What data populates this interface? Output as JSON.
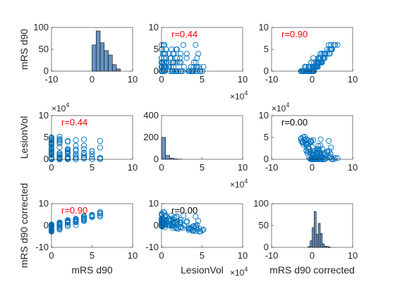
{
  "chart_data": [
    {
      "id": "p11",
      "type": "histogram",
      "ylim": [
        0,
        100
      ],
      "xlim": [
        -10,
        10
      ],
      "yticks": [
        "0",
        "50",
        "100"
      ],
      "xticks": [
        "-10",
        "0",
        "10"
      ],
      "ylabel": "mRS d90",
      "xlabel": "",
      "edges": [
        0,
        1,
        2,
        3,
        4,
        5,
        6,
        7
      ],
      "counts": [
        60,
        92,
        65,
        47,
        37,
        15,
        5
      ]
    },
    {
      "id": "p12",
      "type": "scatter",
      "ylim": [
        0,
        10
      ],
      "xlim": [
        0,
        10
      ],
      "yticks": [
        "0",
        "5",
        "10"
      ],
      "xticks": [
        "0",
        "5",
        "10"
      ],
      "corr": "r=0.44",
      "corr_color": "#ff0000",
      "x_multiplier": "×10",
      "x_multiplier_exp": "4",
      "ylabel": "",
      "xlabel": ""
    },
    {
      "id": "p13",
      "type": "scatter",
      "ylim": [
        0,
        10
      ],
      "xlim": [
        -10,
        10
      ],
      "yticks": [
        "0",
        "5",
        "10"
      ],
      "xticks": [
        "-10",
        "0",
        "10"
      ],
      "corr": "r=0.90",
      "corr_color": "#ff0000",
      "ylabel": "",
      "xlabel": ""
    },
    {
      "id": "p21",
      "type": "scatter",
      "ylim": [
        0,
        10
      ],
      "xlim": [
        0,
        10
      ],
      "yticks": [
        "0",
        "5",
        "10"
      ],
      "xticks": [
        "0",
        "5",
        "10"
      ],
      "corr": "r=0.44",
      "corr_color": "#ff0000",
      "y_multiplier": "×10",
      "y_multiplier_exp": "4",
      "ylabel": "LesionVol",
      "xlabel": ""
    },
    {
      "id": "p22",
      "type": "histogram",
      "ylim": [
        0,
        400
      ],
      "xlim": [
        0,
        10
      ],
      "yticks": [
        "0",
        "200",
        "400"
      ],
      "xticks": [
        "0",
        "5",
        "10"
      ],
      "x_multiplier": "×10",
      "x_multiplier_exp": "4",
      "edges": [
        0,
        0.5,
        1,
        1.5,
        2,
        2.5
      ],
      "counts": [
        200,
        35,
        10,
        3,
        1
      ],
      "ylabel": "",
      "xlabel": ""
    },
    {
      "id": "p23",
      "type": "scatter",
      "ylim": [
        0,
        10
      ],
      "xlim": [
        -10,
        10
      ],
      "yticks": [
        "0",
        "5",
        "10"
      ],
      "xticks": [
        "-10",
        "0",
        "10"
      ],
      "corr": "r=0.00",
      "corr_color": "#000000",
      "y_multiplier": "×10",
      "y_multiplier_exp": "4",
      "ylabel": "",
      "xlabel": ""
    },
    {
      "id": "p31",
      "type": "scatter",
      "ylim": [
        -10,
        10
      ],
      "xlim": [
        0,
        10
      ],
      "yticks": [
        "-10",
        "0",
        "10"
      ],
      "xticks": [
        "0",
        "5",
        "10"
      ],
      "corr": "r=0.90",
      "corr_color": "#ff0000",
      "ylabel": "mRS d90 corrected",
      "xlabel": "mRS d90"
    },
    {
      "id": "p32",
      "type": "scatter",
      "ylim": [
        -10,
        10
      ],
      "xlim": [
        0,
        10
      ],
      "yticks": [
        "-10",
        "0",
        "10"
      ],
      "xticks": [
        "0",
        "5",
        "10"
      ],
      "corr": "r=0.00",
      "corr_color": "#000000",
      "x_multiplier": "×10",
      "x_multiplier_exp": "4",
      "ylabel": "",
      "xlabel": "LesionVol"
    },
    {
      "id": "p33",
      "type": "histogram",
      "ylim": [
        0,
        100
      ],
      "xlim": [
        -10,
        10
      ],
      "yticks": [
        "0",
        "50",
        "100"
      ],
      "xticks": [
        "-10",
        "0",
        "10"
      ],
      "edges": [
        -1,
        -0.5,
        0,
        0.5,
        1,
        1.5,
        2,
        2.5,
        3,
        3.5,
        4,
        4.5
      ],
      "counts": [
        2,
        15,
        45,
        82,
        30,
        55,
        32,
        8,
        3,
        2,
        1
      ],
      "ylabel": "",
      "xlabel": "mRS d90 corrected"
    }
  ]
}
